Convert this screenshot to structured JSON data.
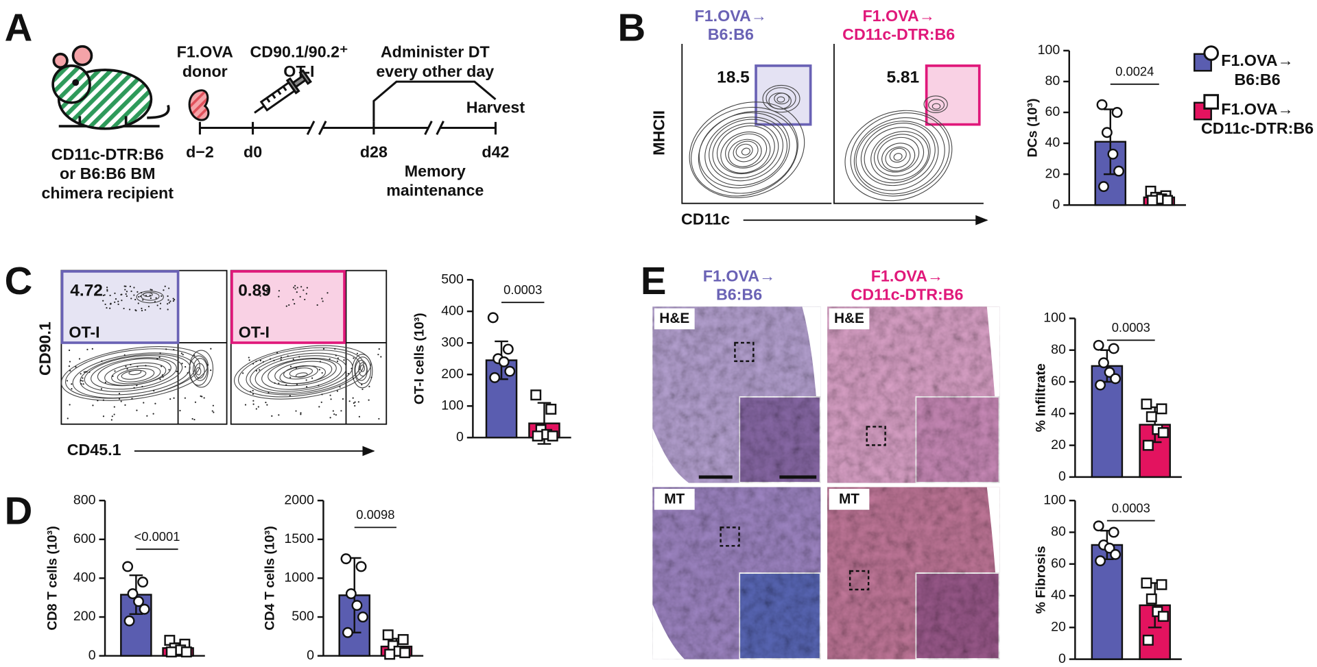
{
  "panel_labels": [
    "A",
    "B",
    "C",
    "D",
    "E"
  ],
  "panel_a": {
    "recipient": [
      "CD11c-DTR:B6",
      "or B6:B6 BM",
      "chimera recipient"
    ],
    "donor": [
      "F1.OVA",
      "donor"
    ],
    "transfer": [
      "CD90.1/90.2⁺",
      "OT-I"
    ],
    "treatment": [
      "Administer DT",
      "every other day"
    ],
    "harvest": "Harvest",
    "phase": [
      "Memory",
      "maintenance"
    ],
    "timepoints": [
      "d−2",
      "d0",
      "d28",
      "d42"
    ]
  },
  "panel_b": {
    "groups": [
      [
        "F1.OVA→",
        "B6:B6"
      ],
      [
        "F1.OVA→",
        "CD11c-DTR:B6"
      ]
    ],
    "gates": [
      18.5,
      5.81
    ],
    "y_label": "MHCII",
    "x_label": "CD11c",
    "legend": [
      [
        "F1.OVA→",
        "B6:B6"
      ],
      [
        "F1.OVA→",
        "CD11c-DTR:B6"
      ]
    ]
  },
  "panel_c": {
    "gates": [
      4.72,
      0.89
    ],
    "gate_labels": [
      "OT-I",
      "OT-I"
    ],
    "y_label": "CD90.1",
    "x_label": "CD45.1"
  },
  "panel_e": {
    "groups": [
      [
        "F1.OVA→",
        "B6:B6"
      ],
      [
        "F1.OVA→",
        "CD11c-DTR:B6"
      ]
    ],
    "stains": [
      [
        "H&E",
        "H&E"
      ],
      [
        "MT",
        "MT"
      ]
    ]
  },
  "chart_data": [
    {
      "type": "bar",
      "y_label": "DCs (10³)",
      "categories": [
        null,
        null
      ],
      "values": [
        41,
        5
      ],
      "errors": [
        21,
        3
      ],
      "points": [
        [
          65,
          60,
          47,
          33,
          22,
          12
        ],
        [
          9,
          6,
          5,
          4,
          3,
          3
        ]
      ],
      "colors": [
        "#5a5db0",
        "#e3135f"
      ],
      "markers": [
        "circle",
        "square"
      ],
      "ylim": [
        0,
        100
      ],
      "yticks": [
        0,
        20,
        40,
        60,
        80,
        100
      ],
      "annotation": "0.0024"
    },
    {
      "type": "bar",
      "y_label": "OT-I cells (10³)",
      "categories": [
        null,
        null
      ],
      "values": [
        245,
        45
      ],
      "errors": [
        60,
        65
      ],
      "points": [
        [
          380,
          280,
          250,
          240,
          210,
          190
        ],
        [
          135,
          90,
          25,
          10,
          5,
          5
        ]
      ],
      "colors": [
        "#5a5db0",
        "#e3135f"
      ],
      "markers": [
        "circle",
        "square"
      ],
      "ylim": [
        0,
        500
      ],
      "yticks": [
        0,
        100,
        200,
        300,
        400,
        500
      ],
      "annotation": "0.0003"
    },
    {
      "type": "bar",
      "y_label": "CD8 T cells (10³)",
      "categories": [
        null,
        null
      ],
      "values": [
        315,
        40
      ],
      "errors": [
        100,
        25
      ],
      "points": [
        [
          460,
          380,
          320,
          280,
          240,
          180
        ],
        [
          80,
          60,
          40,
          30,
          20,
          20
        ]
      ],
      "colors": [
        "#5a5db0",
        "#e3135f"
      ],
      "markers": [
        "circle",
        "square"
      ],
      "ylim": [
        0,
        800
      ],
      "yticks": [
        0,
        200,
        400,
        600,
        800
      ],
      "annotation": "<0.0001"
    },
    {
      "type": "bar",
      "y_label": "CD4 T cells (10³)",
      "categories": [
        null,
        null
      ],
      "values": [
        780,
        120
      ],
      "errors": [
        480,
        100
      ],
      "points": [
        [
          1250,
          1150,
          800,
          650,
          500,
          300
        ],
        [
          270,
          210,
          130,
          60,
          40,
          20
        ]
      ],
      "colors": [
        "#5a5db0",
        "#e3135f"
      ],
      "markers": [
        "circle",
        "square"
      ],
      "ylim": [
        0,
        2000
      ],
      "yticks": [
        0,
        500,
        1000,
        1500,
        2000
      ],
      "annotation": "0.0098"
    },
    {
      "type": "bar",
      "y_label": "% Infiltrate",
      "categories": [
        null,
        null
      ],
      "values": [
        70,
        33
      ],
      "errors": [
        10,
        11
      ],
      "points": [
        [
          83,
          81,
          72,
          66,
          62,
          58
        ],
        [
          46,
          43,
          38,
          30,
          28,
          20
        ]
      ],
      "colors": [
        "#5a5db0",
        "#e3135f"
      ],
      "markers": [
        "circle",
        "square"
      ],
      "ylim": [
        0,
        100
      ],
      "yticks": [
        0,
        20,
        40,
        60,
        80,
        100
      ],
      "annotation": "0.0003"
    },
    {
      "type": "bar",
      "y_label": "% Fibrosis",
      "categories": [
        null,
        null
      ],
      "values": [
        72,
        34
      ],
      "errors": [
        9,
        14
      ],
      "points": [
        [
          84,
          80,
          72,
          70,
          66,
          62
        ],
        [
          48,
          47,
          38,
          30,
          27,
          12
        ]
      ],
      "colors": [
        "#5a5db0",
        "#e3135f"
      ],
      "markers": [
        "circle",
        "square"
      ],
      "ylim": [
        0,
        100
      ],
      "yticks": [
        0,
        20,
        40,
        60,
        80,
        100
      ],
      "annotation": "0.0003"
    }
  ]
}
